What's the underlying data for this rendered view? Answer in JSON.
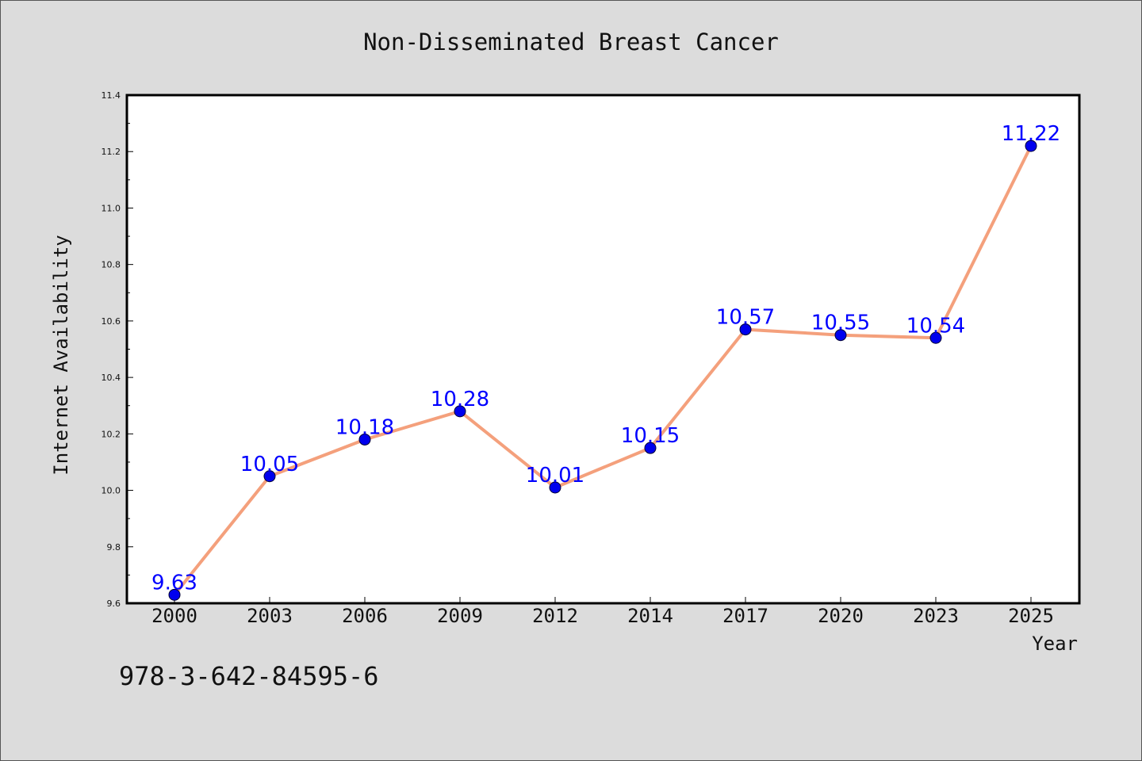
{
  "chart_data": {
    "type": "line",
    "title": "Non-Disseminated Breast Cancer",
    "xlabel": "Year",
    "ylabel": "Internet Availability",
    "categories": [
      "2000",
      "2003",
      "2006",
      "2009",
      "2012",
      "2014",
      "2017",
      "2020",
      "2023",
      "2025"
    ],
    "series": [
      {
        "values": [
          9.63,
          10.05,
          10.18,
          10.28,
          10.01,
          10.15,
          10.57,
          10.55,
          10.54,
          11.22
        ],
        "data_labels": [
          "9.63",
          "10.05",
          "10.18",
          "10.28",
          "10.01",
          "10.15",
          "10.57",
          "10.55",
          "10.54",
          "11.22"
        ],
        "line_color": "#f4a07c",
        "marker_color": "#0000ee"
      }
    ],
    "ylim": [
      9.6,
      11.4
    ],
    "y_ticks": [
      "9.6",
      "9.8",
      "10.0",
      "10.2",
      "10.4",
      "10.6",
      "10.8",
      "11.0",
      "11.2",
      "11.4"
    ],
    "label_color": "#0000ff",
    "grid": false,
    "legend": false
  },
  "footer_text": "978-3-642-84595-6"
}
